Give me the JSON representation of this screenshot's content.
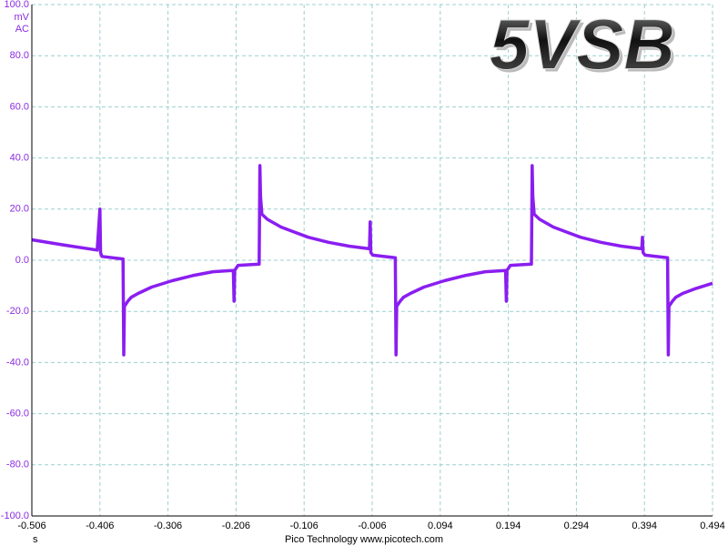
{
  "chart_data": {
    "type": "line",
    "title": "5VSB",
    "y_unit": "mV",
    "y_coupling": "AC",
    "x_unit": "s",
    "footer": "Pico Technology  www.picotech.com",
    "xlim": [
      -0.506,
      0.494
    ],
    "xticks": [
      -0.506,
      -0.406,
      -0.306,
      -0.206,
      -0.106,
      -0.006,
      0.094,
      0.194,
      0.294,
      0.394,
      0.494
    ],
    "ylim": [
      -100,
      100
    ],
    "yticks": [
      {
        "value": -100,
        "label": "-100.0"
      },
      {
        "value": -80,
        "label": "-80.0"
      },
      {
        "value": -60,
        "label": "-60.0"
      },
      {
        "value": -40,
        "label": "-40.0"
      },
      {
        "value": -20,
        "label": "-20.0"
      },
      {
        "value": 0,
        "label": "0.0"
      },
      {
        "value": 20,
        "label": "20.0"
      },
      {
        "value": 40,
        "label": "40.0"
      },
      {
        "value": 60,
        "label": "60.0"
      },
      {
        "value": 80,
        "label": "80.0"
      },
      {
        "value": 100,
        "label": "100.0"
      }
    ],
    "grid": true,
    "series": [
      {
        "color": "#8a1ef0",
        "x": [
          -0.506,
          -0.46,
          -0.41,
          -0.406,
          -0.405,
          -0.403,
          -0.372,
          -0.371,
          -0.37,
          -0.365,
          -0.36,
          -0.35,
          -0.33,
          -0.3,
          -0.27,
          -0.24,
          -0.21,
          -0.209,
          -0.208,
          -0.203,
          -0.172,
          -0.171,
          -0.17,
          -0.168,
          -0.16,
          -0.14,
          -0.12,
          -0.1,
          -0.07,
          -0.04,
          -0.01,
          -0.009,
          -0.008,
          -0.005,
          0.028,
          0.029,
          0.03,
          0.035,
          0.04,
          0.05,
          0.07,
          0.1,
          0.13,
          0.16,
          0.19,
          0.191,
          0.192,
          0.197,
          0.228,
          0.229,
          0.23,
          0.232,
          0.24,
          0.26,
          0.28,
          0.3,
          0.33,
          0.36,
          0.39,
          0.391,
          0.392,
          0.395,
          0.428,
          0.429,
          0.43,
          0.435,
          0.44,
          0.45,
          0.47,
          0.494
        ],
        "values": [
          8,
          6,
          4,
          20,
          3,
          1.5,
          0.5,
          -37,
          -18,
          -16,
          -14.5,
          -13,
          -10.5,
          -8,
          -6,
          -4.5,
          -4,
          -16,
          -4,
          -2,
          -1.5,
          37,
          25,
          18,
          16,
          13,
          11,
          9,
          7,
          5.5,
          4.5,
          15,
          3,
          2,
          1,
          -37,
          -18,
          -16,
          -14.5,
          -13,
          -10.5,
          -8,
          -6,
          -4.5,
          -4,
          -16,
          -4,
          -2,
          -1.5,
          37,
          25,
          18,
          16,
          13,
          11,
          9,
          7,
          5.5,
          4.5,
          9,
          3,
          2,
          1,
          -37,
          -18,
          -16,
          -14.5,
          -13,
          -11,
          -9
        ]
      }
    ]
  }
}
